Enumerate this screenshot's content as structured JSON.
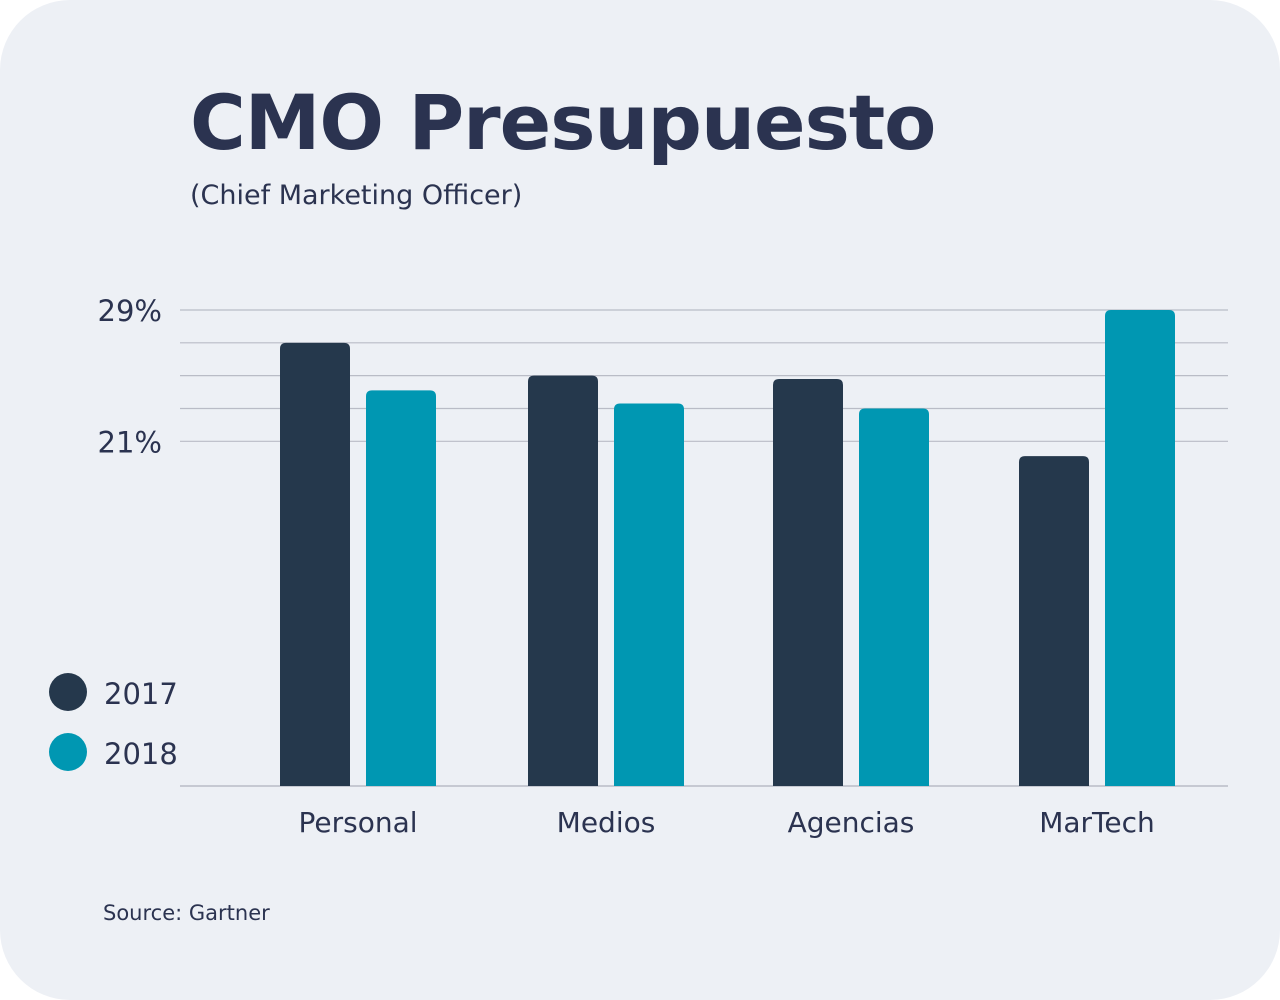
{
  "title": "CMO Presupuesto",
  "subtitle": "(Chief Marketing Officer)",
  "source": "Source: Gartner",
  "colors": {
    "background": "#edf0f5",
    "text": "#2b3350",
    "series_2017": "#25384c",
    "series_2018": "#0097b2",
    "gridline": "#b9bcc6"
  },
  "chart_data": {
    "type": "bar",
    "title": "CMO Presupuesto",
    "subtitle": "(Chief Marketing Officer)",
    "categories": [
      "Personal",
      "Medios",
      "Agencias",
      "MarTech"
    ],
    "series": [
      {
        "name": "2017",
        "values": [
          27,
          25,
          24.8,
          20.1
        ]
      },
      {
        "name": "2018",
        "values": [
          24.1,
          23.3,
          23,
          29
        ]
      }
    ],
    "ylim": [
      0,
      29
    ],
    "yticks": [
      21,
      23,
      25,
      27,
      29
    ],
    "ytick_labels": [
      {
        "value": 21,
        "label": "21%"
      },
      {
        "value": 29,
        "label": "29%"
      }
    ],
    "legend": {
      "position": "bottom-left",
      "entries": [
        "2017",
        "2018"
      ]
    },
    "xlabel": "",
    "ylabel": ""
  }
}
